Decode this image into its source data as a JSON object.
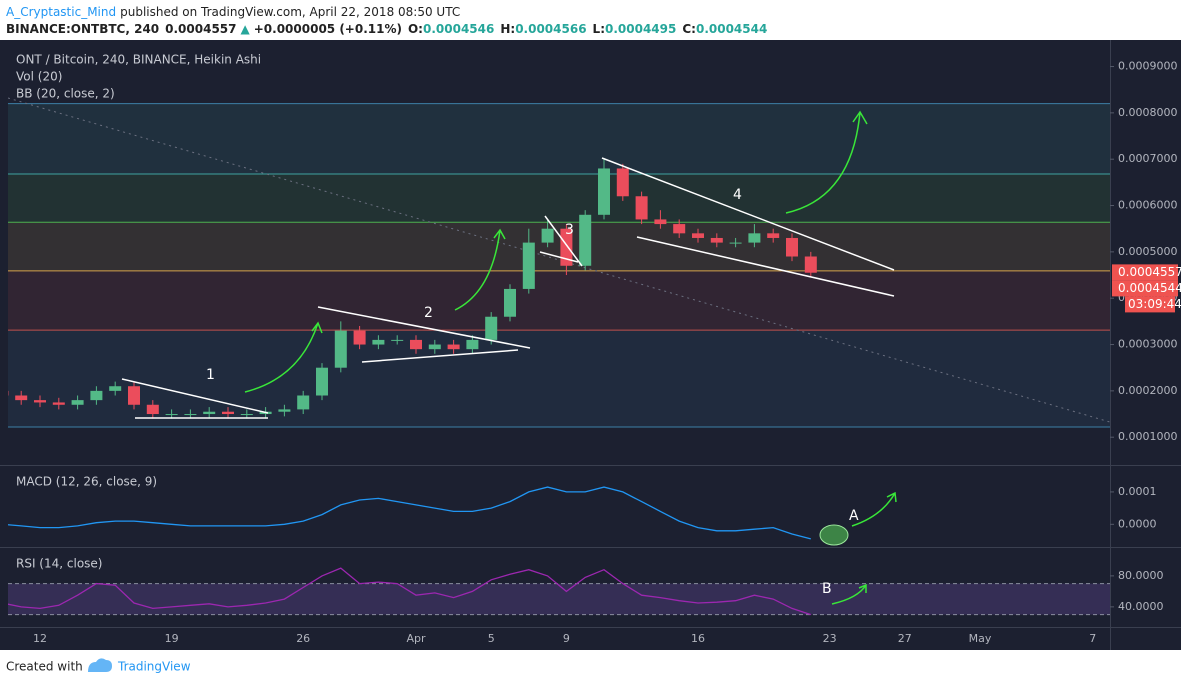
{
  "header": {
    "author": "A_Cryptastic_Mind",
    "published": "published on TradingView.com, April 22, 2018 08:50 UTC",
    "symbol": "BINANCE:ONTBTC, 240",
    "last": "0.0004557",
    "arrow": "▲",
    "change": "+0.0000005 (+0.11%)",
    "o_label": "O:",
    "o": "0.0004546",
    "h_label": "H:",
    "h": "0.0004566",
    "l_label": "L:",
    "l": "0.0004495",
    "c_label": "C:",
    "c": "0.0004544"
  },
  "footer": {
    "created": "Created with",
    "brand": "TradingView"
  },
  "chart_data": {
    "type": "candlestick",
    "title": "ONT / Bitcoin, 240, BINANCE, Heikin Ashi",
    "volume_label": "Vol (20)",
    "bb_label": "BB (20, close, 2)",
    "up_color": "#53b987",
    "down_color": "#eb4d5c",
    "categories": [
      null,
      null,
      "12",
      null,
      null,
      null,
      null,
      null,
      null,
      "19",
      null,
      null,
      null,
      null,
      null,
      null,
      "26",
      null,
      null,
      null,
      null,
      null,
      "Apr",
      null,
      null,
      null,
      "5",
      null,
      null,
      null,
      "9",
      null,
      null,
      null,
      null,
      null,
      null,
      "16",
      null,
      null,
      null,
      null,
      null,
      null,
      "23",
      null,
      null,
      null,
      "27",
      null,
      null,
      null,
      "May",
      null,
      null,
      null,
      null,
      null,
      "7",
      null
    ],
    "open": [
      0.0002,
      0.00019,
      0.00018,
      0.000175,
      0.00017,
      0.00018,
      0.0002,
      0.00021,
      0.00017,
      0.00015,
      0.00015,
      0.00015,
      0.000155,
      0.00015,
      0.00015,
      0.000155,
      0.00016,
      0.00019,
      0.00025,
      0.00033,
      0.0003,
      0.00031,
      0.00031,
      0.00029,
      0.0003,
      0.00029,
      0.00031,
      0.00036,
      0.00042,
      0.00052,
      0.00055,
      0.00047,
      0.00058,
      0.00068,
      0.00062,
      0.00057,
      0.00056,
      0.00054,
      0.00053,
      0.00052,
      0.00052,
      0.00054,
      0.00053,
      0.00049,
      null,
      null,
      null,
      null,
      null,
      null,
      null,
      null,
      null,
      null,
      null,
      null,
      null,
      null,
      null,
      null
    ],
    "high": [
      0.00021,
      0.0002,
      0.00019,
      0.000185,
      0.00019,
      0.00021,
      0.00022,
      0.00022,
      0.00018,
      0.00016,
      0.00016,
      0.000165,
      0.000165,
      0.00016,
      0.000165,
      0.00017,
      0.0002,
      0.00026,
      0.00035,
      0.00034,
      0.00032,
      0.00032,
      0.00032,
      0.00031,
      0.00031,
      0.00032,
      0.00037,
      0.00043,
      0.00055,
      0.00057,
      0.00056,
      0.00059,
      0.0007,
      0.00069,
      0.00063,
      0.00059,
      0.00057,
      0.00055,
      0.00054,
      0.00053,
      0.00056,
      0.00055,
      0.00054,
      0.0005,
      null,
      null,
      null,
      null,
      null,
      null,
      null,
      null,
      null,
      null,
      null,
      null,
      null,
      null,
      null,
      null
    ],
    "low": [
      0.00018,
      0.00017,
      0.000165,
      0.00016,
      0.00016,
      0.00017,
      0.00019,
      0.00016,
      0.00014,
      0.00014,
      0.00014,
      0.00014,
      0.00014,
      0.00014,
      0.00014,
      0.000145,
      0.00015,
      0.00018,
      0.00024,
      0.00029,
      0.00029,
      0.0003,
      0.00028,
      0.00028,
      0.00028,
      0.00028,
      0.0003,
      0.00035,
      0.00041,
      0.00051,
      0.00045,
      0.00046,
      0.00057,
      0.00061,
      0.00056,
      0.00055,
      0.00053,
      0.00052,
      0.00051,
      0.00051,
      0.00051,
      0.00052,
      0.00048,
      0.000445,
      null,
      null,
      null,
      null,
      null,
      null,
      null,
      null,
      null,
      null,
      null,
      null,
      null,
      null,
      null,
      null
    ],
    "close": [
      0.00019,
      0.00018,
      0.000175,
      0.00017,
      0.00018,
      0.0002,
      0.00021,
      0.00017,
      0.00015,
      0.00015,
      0.00015,
      0.000155,
      0.00015,
      0.00015,
      0.000155,
      0.00016,
      0.00019,
      0.00025,
      0.00033,
      0.0003,
      0.00031,
      0.00031,
      0.00029,
      0.0003,
      0.00029,
      0.00031,
      0.00036,
      0.00042,
      0.00052,
      0.00055,
      0.00047,
      0.00058,
      0.00068,
      0.00062,
      0.00057,
      0.00056,
      0.00054,
      0.00053,
      0.00052,
      0.00052,
      0.00054,
      0.00053,
      0.00049,
      0.000455,
      null,
      null,
      null,
      null,
      null,
      null,
      null,
      null,
      null,
      null,
      null,
      null,
      null,
      null,
      null,
      null
    ],
    "ylim": [
      4e-05,
      0.00094
    ],
    "yticks": [
      {
        "value": 0.0001,
        "label": "0.0001000"
      },
      {
        "value": 0.0002,
        "label": "0.0002000"
      },
      {
        "value": 0.0003,
        "label": "0.0003000"
      },
      {
        "value": 0.0004,
        "label": "0.0004000"
      },
      {
        "value": 0.0005,
        "label": "0.0005000"
      },
      {
        "value": 0.0006,
        "label": "0.0006000"
      },
      {
        "value": 0.0007,
        "label": "0.0007000"
      },
      {
        "value": 0.0008,
        "label": "0.0008000"
      },
      {
        "value": 0.0009,
        "label": "0.0009000"
      }
    ],
    "levels": [
      {
        "value": 0.00082,
        "color": "#3d7fa6"
      },
      {
        "value": 0.000668,
        "color": "#3fa3a0"
      },
      {
        "value": 0.000564,
        "color": "#4caf50"
      },
      {
        "value": 0.000459,
        "color": "#d4a24c"
      },
      {
        "value": 0.000331,
        "color": "#c0504d"
      },
      {
        "value": 0.000122,
        "color": "#3d7fa6"
      }
    ],
    "price_labels": [
      {
        "value": 0.0004557,
        "label": "0.0004557"
      },
      {
        "value": 0.0004544,
        "label": "0.0004544"
      }
    ],
    "countdown": "03:09:44",
    "label_color": "#ef5350",
    "annotations": [
      "1",
      "2",
      "3",
      "4",
      "A",
      "B"
    ],
    "macd": {
      "type": "line",
      "title": "MACD (12, 26, close, 9)",
      "ylim": [
        -7e-05,
        0.00018
      ],
      "yticks": [
        {
          "value": 0,
          "label": "0.0000"
        },
        0.0001
      ],
      "series": [
        {
          "color": "#2196f3",
          "values": [
            0,
            -5e-06,
            -1e-05,
            -1e-05,
            -5e-06,
            5e-06,
            1e-05,
            1e-05,
            5e-06,
            0,
            -5e-06,
            -5e-06,
            -5e-06,
            -5e-06,
            -5e-06,
            0,
            1e-05,
            3e-05,
            6e-05,
            7.5e-05,
            8e-05,
            7e-05,
            6e-05,
            5e-05,
            4e-05,
            4e-05,
            5e-05,
            7e-05,
            0.0001,
            0.000115,
            0.0001,
            0.0001,
            0.000115,
            0.0001,
            7e-05,
            4e-05,
            1e-05,
            -1e-05,
            -2e-05,
            -2e-05,
            -1.5e-05,
            -1e-05,
            -3e-05,
            -4.5e-05,
            null,
            null,
            null,
            null,
            null,
            null,
            null,
            null,
            null,
            null,
            null,
            null,
            null,
            null,
            null,
            null
          ]
        }
      ]
    },
    "rsi": {
      "type": "line",
      "title": "RSI (14, close)",
      "ylim": [
        14,
        116
      ],
      "yticks": [
        {
          "value": 40,
          "label": "40.0000"
        },
        {
          "value": 80,
          "label": "80.0000"
        }
      ],
      "bands": [
        30,
        70
      ],
      "band_color": "#7e57c2",
      "series": [
        {
          "color": "#9c27b0",
          "values": [
            45,
            40,
            38,
            42,
            55,
            70,
            68,
            45,
            38,
            40,
            42,
            44,
            40,
            42,
            45,
            50,
            65,
            80,
            90,
            70,
            72,
            70,
            55,
            58,
            52,
            60,
            75,
            82,
            88,
            80,
            60,
            78,
            88,
            70,
            55,
            52,
            48,
            45,
            46,
            48,
            55,
            50,
            38,
            30,
            null,
            null,
            null,
            null,
            null,
            null,
            null,
            null,
            null,
            null,
            null,
            null,
            null,
            null,
            null,
            null
          ]
        }
      ]
    }
  }
}
